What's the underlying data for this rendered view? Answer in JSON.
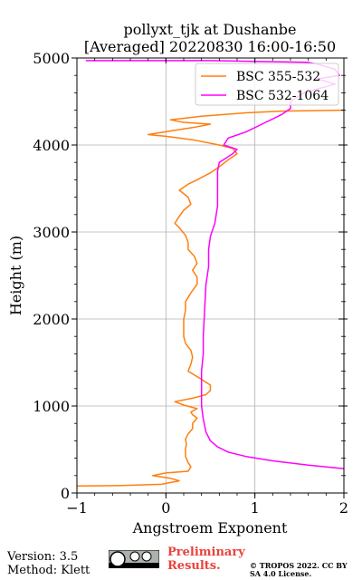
{
  "chart_data": {
    "type": "line",
    "title": "pollyxt_tjk at Dushanbe",
    "subtitle": "[Averaged] 20220830 16:00-16:50",
    "xlabel": "Angstroem Exponent",
    "ylabel": "Height (m)",
    "xlim": [
      -1,
      2
    ],
    "ylim": [
      0,
      5000
    ],
    "xticks": [
      -1,
      0,
      1,
      2
    ],
    "yticks": [
      0,
      1000,
      2000,
      3000,
      4000,
      5000
    ],
    "grid": true,
    "legend_position": "top-right",
    "series": [
      {
        "name": "BSC 355-532",
        "color": "#ff7f0e",
        "points": [
          [
            -1.0,
            80
          ],
          [
            -0.5,
            85
          ],
          [
            -0.05,
            100
          ],
          [
            0.15,
            140
          ],
          [
            0.05,
            170
          ],
          [
            -0.15,
            200
          ],
          [
            0.0,
            230
          ],
          [
            0.25,
            250
          ],
          [
            0.28,
            300
          ],
          [
            0.25,
            350
          ],
          [
            0.22,
            420
          ],
          [
            0.22,
            500
          ],
          [
            0.23,
            560
          ],
          [
            0.22,
            620
          ],
          [
            0.25,
            680
          ],
          [
            0.3,
            740
          ],
          [
            0.3,
            800
          ],
          [
            0.35,
            860
          ],
          [
            0.3,
            900
          ],
          [
            0.28,
            930
          ],
          [
            0.35,
            970
          ],
          [
            0.2,
            1010
          ],
          [
            0.1,
            1050
          ],
          [
            0.3,
            1090
          ],
          [
            0.45,
            1130
          ],
          [
            0.5,
            1180
          ],
          [
            0.5,
            1240
          ],
          [
            0.38,
            1320
          ],
          [
            0.25,
            1400
          ],
          [
            0.28,
            1480
          ],
          [
            0.3,
            1560
          ],
          [
            0.28,
            1640
          ],
          [
            0.22,
            1720
          ],
          [
            0.2,
            1800
          ],
          [
            0.2,
            1900
          ],
          [
            0.2,
            2000
          ],
          [
            0.22,
            2100
          ],
          [
            0.22,
            2200
          ],
          [
            0.28,
            2300
          ],
          [
            0.35,
            2400
          ],
          [
            0.35,
            2480
          ],
          [
            0.3,
            2560
          ],
          [
            0.35,
            2640
          ],
          [
            0.32,
            2720
          ],
          [
            0.25,
            2800
          ],
          [
            0.25,
            2880
          ],
          [
            0.22,
            2960
          ],
          [
            0.15,
            3050
          ],
          [
            0.1,
            3100
          ],
          [
            0.15,
            3180
          ],
          [
            0.2,
            3250
          ],
          [
            0.28,
            3320
          ],
          [
            0.25,
            3400
          ],
          [
            0.15,
            3480
          ],
          [
            0.25,
            3550
          ],
          [
            0.35,
            3600
          ],
          [
            0.5,
            3680
          ],
          [
            0.6,
            3750
          ],
          [
            0.7,
            3830
          ],
          [
            0.8,
            3900
          ],
          [
            0.75,
            3960
          ],
          [
            0.6,
            4000
          ],
          [
            0.3,
            4060
          ],
          [
            0.0,
            4100
          ],
          [
            -0.2,
            4120
          ],
          [
            0.1,
            4170
          ],
          [
            0.3,
            4200
          ],
          [
            0.5,
            4240
          ],
          [
            0.2,
            4260
          ],
          [
            0.05,
            4290
          ],
          [
            0.4,
            4330
          ],
          [
            0.9,
            4370
          ],
          [
            1.3,
            4390
          ],
          [
            1.95,
            4400
          ],
          [
            2.0,
            4400
          ]
        ]
      },
      {
        "name": "BSC 532-1064",
        "color": "#ff00ff",
        "points": [
          [
            2.0,
            280
          ],
          [
            1.6,
            320
          ],
          [
            1.2,
            370
          ],
          [
            0.9,
            420
          ],
          [
            0.7,
            470
          ],
          [
            0.58,
            530
          ],
          [
            0.5,
            600
          ],
          [
            0.45,
            700
          ],
          [
            0.42,
            850
          ],
          [
            0.4,
            1000
          ],
          [
            0.4,
            1200
          ],
          [
            0.4,
            1400
          ],
          [
            0.42,
            1600
          ],
          [
            0.42,
            1800
          ],
          [
            0.43,
            2000
          ],
          [
            0.44,
            2200
          ],
          [
            0.45,
            2400
          ],
          [
            0.48,
            2600
          ],
          [
            0.48,
            2800
          ],
          [
            0.5,
            2950
          ],
          [
            0.55,
            3100
          ],
          [
            0.58,
            3300
          ],
          [
            0.58,
            3500
          ],
          [
            0.58,
            3700
          ],
          [
            0.6,
            3800
          ],
          [
            0.75,
            3900
          ],
          [
            0.8,
            3950
          ],
          [
            0.65,
            4000
          ],
          [
            0.7,
            4080
          ],
          [
            0.9,
            4150
          ],
          [
            1.1,
            4250
          ],
          [
            1.3,
            4350
          ],
          [
            1.4,
            4420
          ],
          [
            1.4,
            4500
          ],
          [
            1.55,
            4600
          ],
          [
            1.9,
            4700
          ],
          [
            1.7,
            4760
          ],
          [
            1.95,
            4800
          ],
          [
            1.9,
            4870
          ],
          [
            1.7,
            4930
          ],
          [
            1.6,
            4950
          ],
          [
            0.5,
            4970
          ],
          [
            -0.9,
            4970
          ]
        ]
      }
    ]
  },
  "footer": {
    "version": "Version: 3.5",
    "method": "Method: Klett",
    "preliminary": "Preliminary Results.",
    "copyright": "© TROPOS 2022. CC BY SA 4.0 License."
  }
}
